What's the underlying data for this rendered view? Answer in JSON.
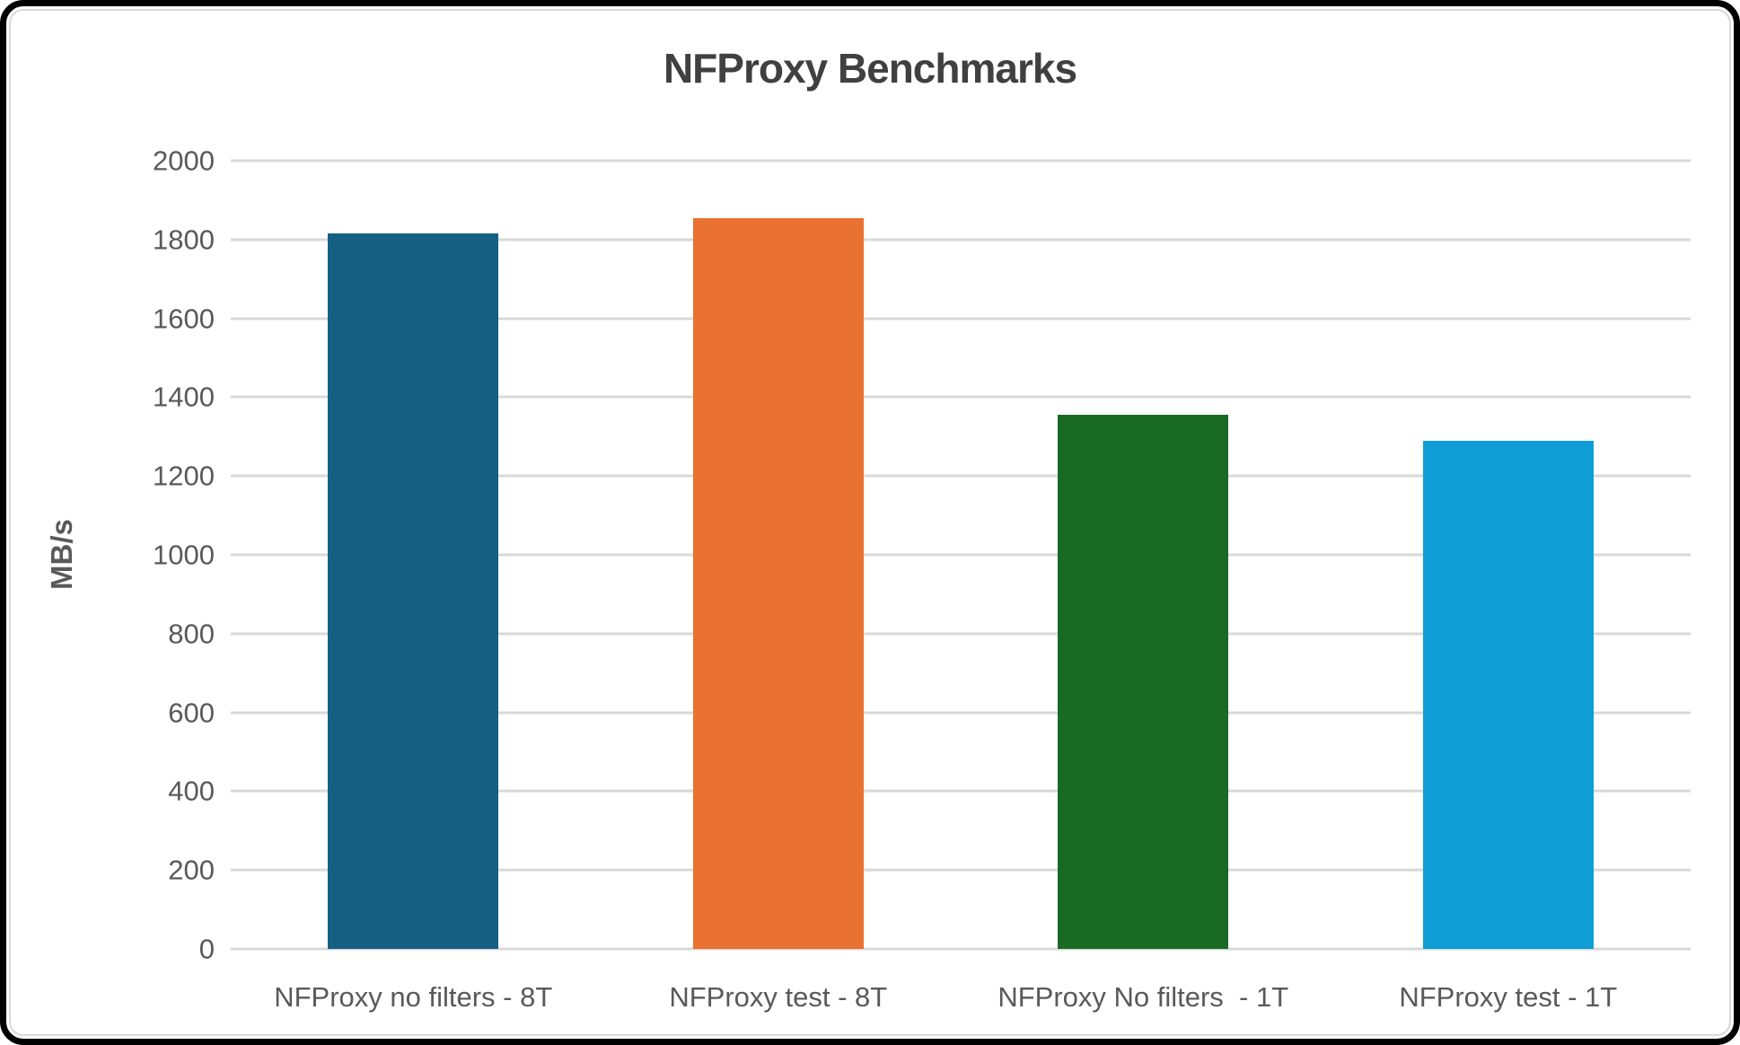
{
  "chart_data": {
    "type": "bar",
    "title": "NFProxy Benchmarks",
    "ylabel": "MB/s",
    "xlabel": "",
    "categories": [
      "NFProxy no filters - 8T",
      "NFProxy test - 8T",
      "NFProxy No filters  - 1T",
      "NFProxy test - 1T"
    ],
    "values": [
      1815,
      1855,
      1355,
      1290
    ],
    "bar_colors": [
      "#156082",
      "#E97132",
      "#196B24",
      "#0F9ED5"
    ],
    "ylim": [
      0,
      2000
    ],
    "yticks": [
      0,
      200,
      400,
      600,
      800,
      1000,
      1200,
      1400,
      1600,
      1800,
      2000
    ],
    "grid": "horizontal",
    "legend": "none"
  },
  "style": {
    "title_color": "#404040",
    "axis_text_color": "#595959",
    "gridline_color": "#D9D9D9",
    "background": "#FFFFFF",
    "frame_border_color": "#000000",
    "chart_border_color": "#D9D9D9"
  }
}
